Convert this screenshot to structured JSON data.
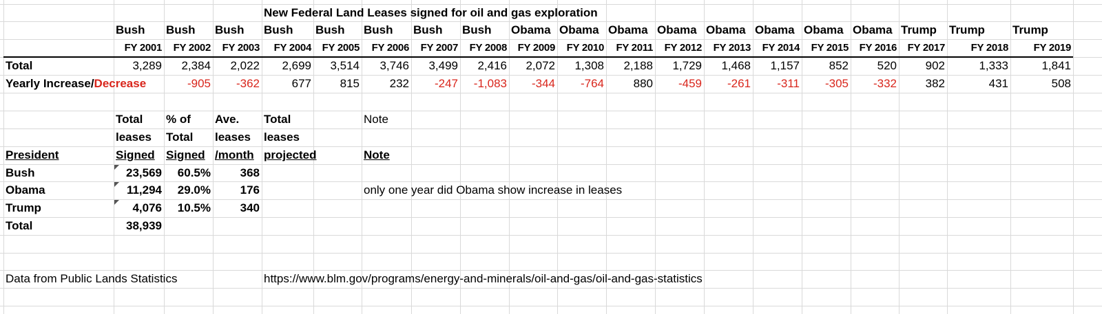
{
  "title": "New Federal Land Leases signed for oil and gas exploration",
  "header": {
    "presidents": [
      "Bush",
      "Bush",
      "Bush",
      "Bush",
      "Bush",
      "Bush",
      "Bush",
      "Bush",
      "Obama",
      "Obama",
      "Obama",
      "Obama",
      "Obama",
      "Obama",
      "Obama",
      "Obama",
      "Trump",
      "Trump",
      "Trump"
    ],
    "fiscal_years": [
      "FY 2001",
      "FY 2002",
      "FY 2003",
      "FY 2004",
      "FY 2005",
      "FY 2006",
      "FY 2007",
      "FY 2008",
      "FY 2009",
      "FY 2010",
      "FY 2011",
      "FY 2012",
      "FY 2013",
      "FY 2014",
      "FY 2015",
      "FY 2016",
      "FY 2017",
      "FY 2018",
      "FY 2019"
    ]
  },
  "rows": [
    {
      "label": [
        "Total"
      ],
      "values": [
        "3,289",
        "2,384",
        "2,022",
        "2,699",
        "3,514",
        "3,746",
        "3,499",
        "2,416",
        "2,072",
        "1,308",
        "2,188",
        "1,729",
        "1,468",
        "1,157",
        "852",
        "520",
        "902",
        "1,333",
        "1,841"
      ]
    },
    {
      "label": [
        "Yearly Increase/",
        "Decrease"
      ],
      "values": [
        null,
        "-905",
        "-362",
        "677",
        "815",
        "232",
        "-247",
        "-1,083",
        "-344",
        "-764",
        "880",
        "-459",
        "-261",
        "-311",
        "-305",
        "-332",
        "382",
        "431",
        "508"
      ]
    }
  ],
  "negative_color": "#d9261c",
  "summary": {
    "columns": [
      [
        "Total",
        "leases",
        "Signed"
      ],
      [
        "% of",
        "Total",
        "Signed"
      ],
      [
        "Ave.",
        "leases",
        "/month"
      ],
      [
        "Total",
        "leases",
        "projected"
      ]
    ],
    "president_heading": "President",
    "note_labels": [
      "Note",
      "Note"
    ],
    "rows": [
      [
        "Bush",
        "23,569",
        "60.5%",
        "368"
      ],
      [
        "Obama",
        "11,294",
        "29.0%",
        "176"
      ],
      [
        "Trump",
        "4,076",
        "10.5%",
        "340"
      ]
    ],
    "total": [
      "Total",
      "38,939"
    ],
    "note": "only one year did Obama show increase in leases"
  },
  "footer": {
    "source": "Data from Public Lands Statistics",
    "url": "https://www.blm.gov/programs/energy-and-minerals/oil-and-gas/oil-and-gas-statistics"
  }
}
